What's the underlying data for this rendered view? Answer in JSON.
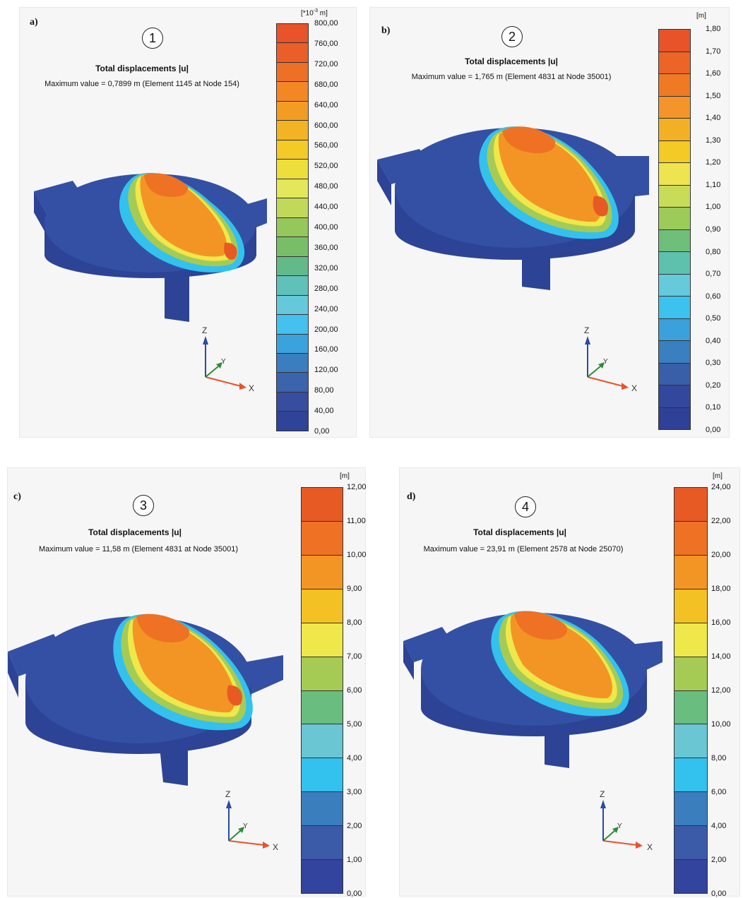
{
  "colors": {
    "scale_12": [
      "#e85a24",
      "#ee7124",
      "#f39524",
      "#f4c124",
      "#eee84a",
      "#a5cb55",
      "#69bd7f",
      "#69c6d2",
      "#33c1ee",
      "#3a7ebe",
      "#3b5aa8",
      "#33449e"
    ],
    "scale_18": [
      "#e8532a",
      "#ea5e28",
      "#ee6f26",
      "#f28724",
      "#f39c24",
      "#f3b424",
      "#f3ca26",
      "#eede3c",
      "#e2e85a",
      "#c2d859",
      "#96c75a",
      "#78be69",
      "#62b98a",
      "#5fc1ba",
      "#65c9db",
      "#44c1ee",
      "#3aa3de",
      "#3a7ebf",
      "#3a64ab",
      "#374da0",
      "#2f4398"
    ],
    "scale_18b": [
      "#e8532a",
      "#ec6426",
      "#f07a24",
      "#f3952a",
      "#f4b024",
      "#f3ca26",
      "#eee450",
      "#c8dc58",
      "#9ccb5a",
      "#6fbe79",
      "#5dc1ae",
      "#66cadd",
      "#3cc2ef",
      "#3aa1da",
      "#3a7fbf",
      "#385fa8",
      "#33489c",
      "#2f4197"
    ],
    "model_body": "#3450a4",
    "model_side": "#2c4396"
  },
  "panels": [
    {
      "letter": "a)",
      "number": "1",
      "title": "Total displacements |u|",
      "subtitle": "Maximum value = 0,7899 m (Element 1145 at Node 154)",
      "unit_prefix": "[*10",
      "unit_exp": "-3",
      "unit_suffix": " m]",
      "ticks": [
        "800,00",
        "760,00",
        "720,00",
        "680,00",
        "640,00",
        "600,00",
        "560,00",
        "520,00",
        "480,00",
        "440,00",
        "400,00",
        "360,00",
        "320,00",
        "280,00",
        "240,00",
        "200,00",
        "160,00",
        "120,00",
        "80,00",
        "40,00",
        "0,00"
      ],
      "axes": {
        "z": "Z",
        "y": "Y",
        "x": "X"
      }
    },
    {
      "letter": "b)",
      "number": "2",
      "title": "Total displacements |u|",
      "subtitle": "Maximum value = 1,765 m (Element 4831 at Node 35001)",
      "unit": "[m]",
      "ticks": [
        "1,80",
        "1,70",
        "1,60",
        "1,50",
        "1,40",
        "1,30",
        "1,20",
        "1,10",
        "1,00",
        "0,90",
        "0,80",
        "0,70",
        "0,60",
        "0,50",
        "0,40",
        "0,30",
        "0,20",
        "0,10",
        "0,00"
      ],
      "axes": {
        "z": "Z",
        "y": "Y",
        "x": "X"
      }
    },
    {
      "letter": "c)",
      "number": "3",
      "title": "Total displacements |u|",
      "subtitle": "Maximum value = 11,58 m (Element 4831 at Node 35001)",
      "unit": "[m]",
      "ticks": [
        "12,00",
        "11,00",
        "10,00",
        "9,00",
        "8,00",
        "7,00",
        "6,00",
        "5,00",
        "4,00",
        "3,00",
        "2,00",
        "1,00",
        "0,00"
      ],
      "axes": {
        "z": "Z",
        "y": "Y",
        "x": "X"
      }
    },
    {
      "letter": "d)",
      "number": "4",
      "title": "Total displacements |u|",
      "subtitle": "Maximum value = 23,91 m (Element 2578 at Node 25070)",
      "unit": "[m]",
      "ticks": [
        "24,00",
        "22,00",
        "20,00",
        "18,00",
        "16,00",
        "14,00",
        "12,00",
        "10,00",
        "8,00",
        "6,00",
        "4,00",
        "2,00",
        "0,00"
      ],
      "axes": {
        "z": "Z",
        "y": "Y",
        "x": "X"
      }
    }
  ]
}
